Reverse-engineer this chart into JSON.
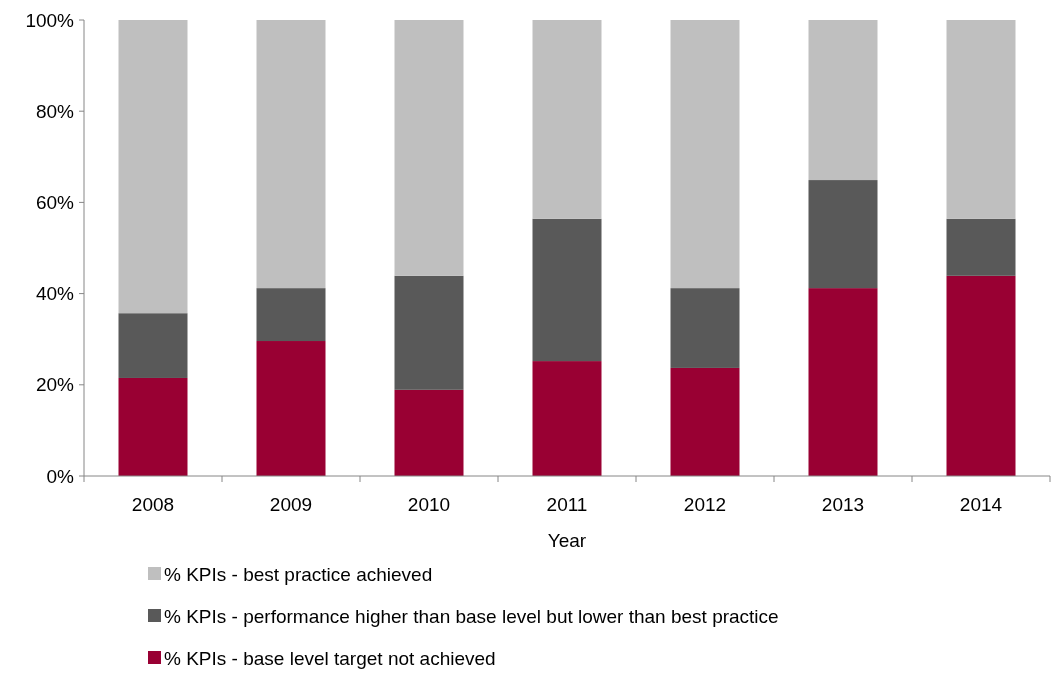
{
  "chart_data": {
    "type": "bar",
    "stacked": true,
    "xlabel": "Year",
    "categories": [
      "2008",
      "2009",
      "2010",
      "2011",
      "2012",
      "2013",
      "2014"
    ],
    "series": [
      {
        "name": "% KPIs - base level target not achieved",
        "color": "#990033",
        "values": [
          21.5,
          29.6,
          18.9,
          25.2,
          23.7,
          41.2,
          43.9
        ]
      },
      {
        "name": "% KPIs - performance higher than base level but lower than best practice",
        "color": "#595959",
        "values": [
          14.2,
          11.6,
          25.0,
          31.2,
          17.5,
          23.7,
          12.5
        ]
      },
      {
        "name": "% KPIs - best practice achieved",
        "color": "#bfbfbf",
        "values": [
          64.3,
          58.8,
          56.1,
          43.6,
          58.8,
          35.1,
          43.6
        ]
      }
    ],
    "ylim": [
      0,
      100
    ],
    "yticks": [
      {
        "value": 0,
        "label": "0%"
      },
      {
        "value": 20,
        "label": "20%"
      },
      {
        "value": 40,
        "label": "40%"
      },
      {
        "value": 60,
        "label": "60%"
      },
      {
        "value": 80,
        "label": "80%"
      },
      {
        "value": 100,
        "label": "100%"
      }
    ],
    "grid": false,
    "legend": "bottom"
  }
}
